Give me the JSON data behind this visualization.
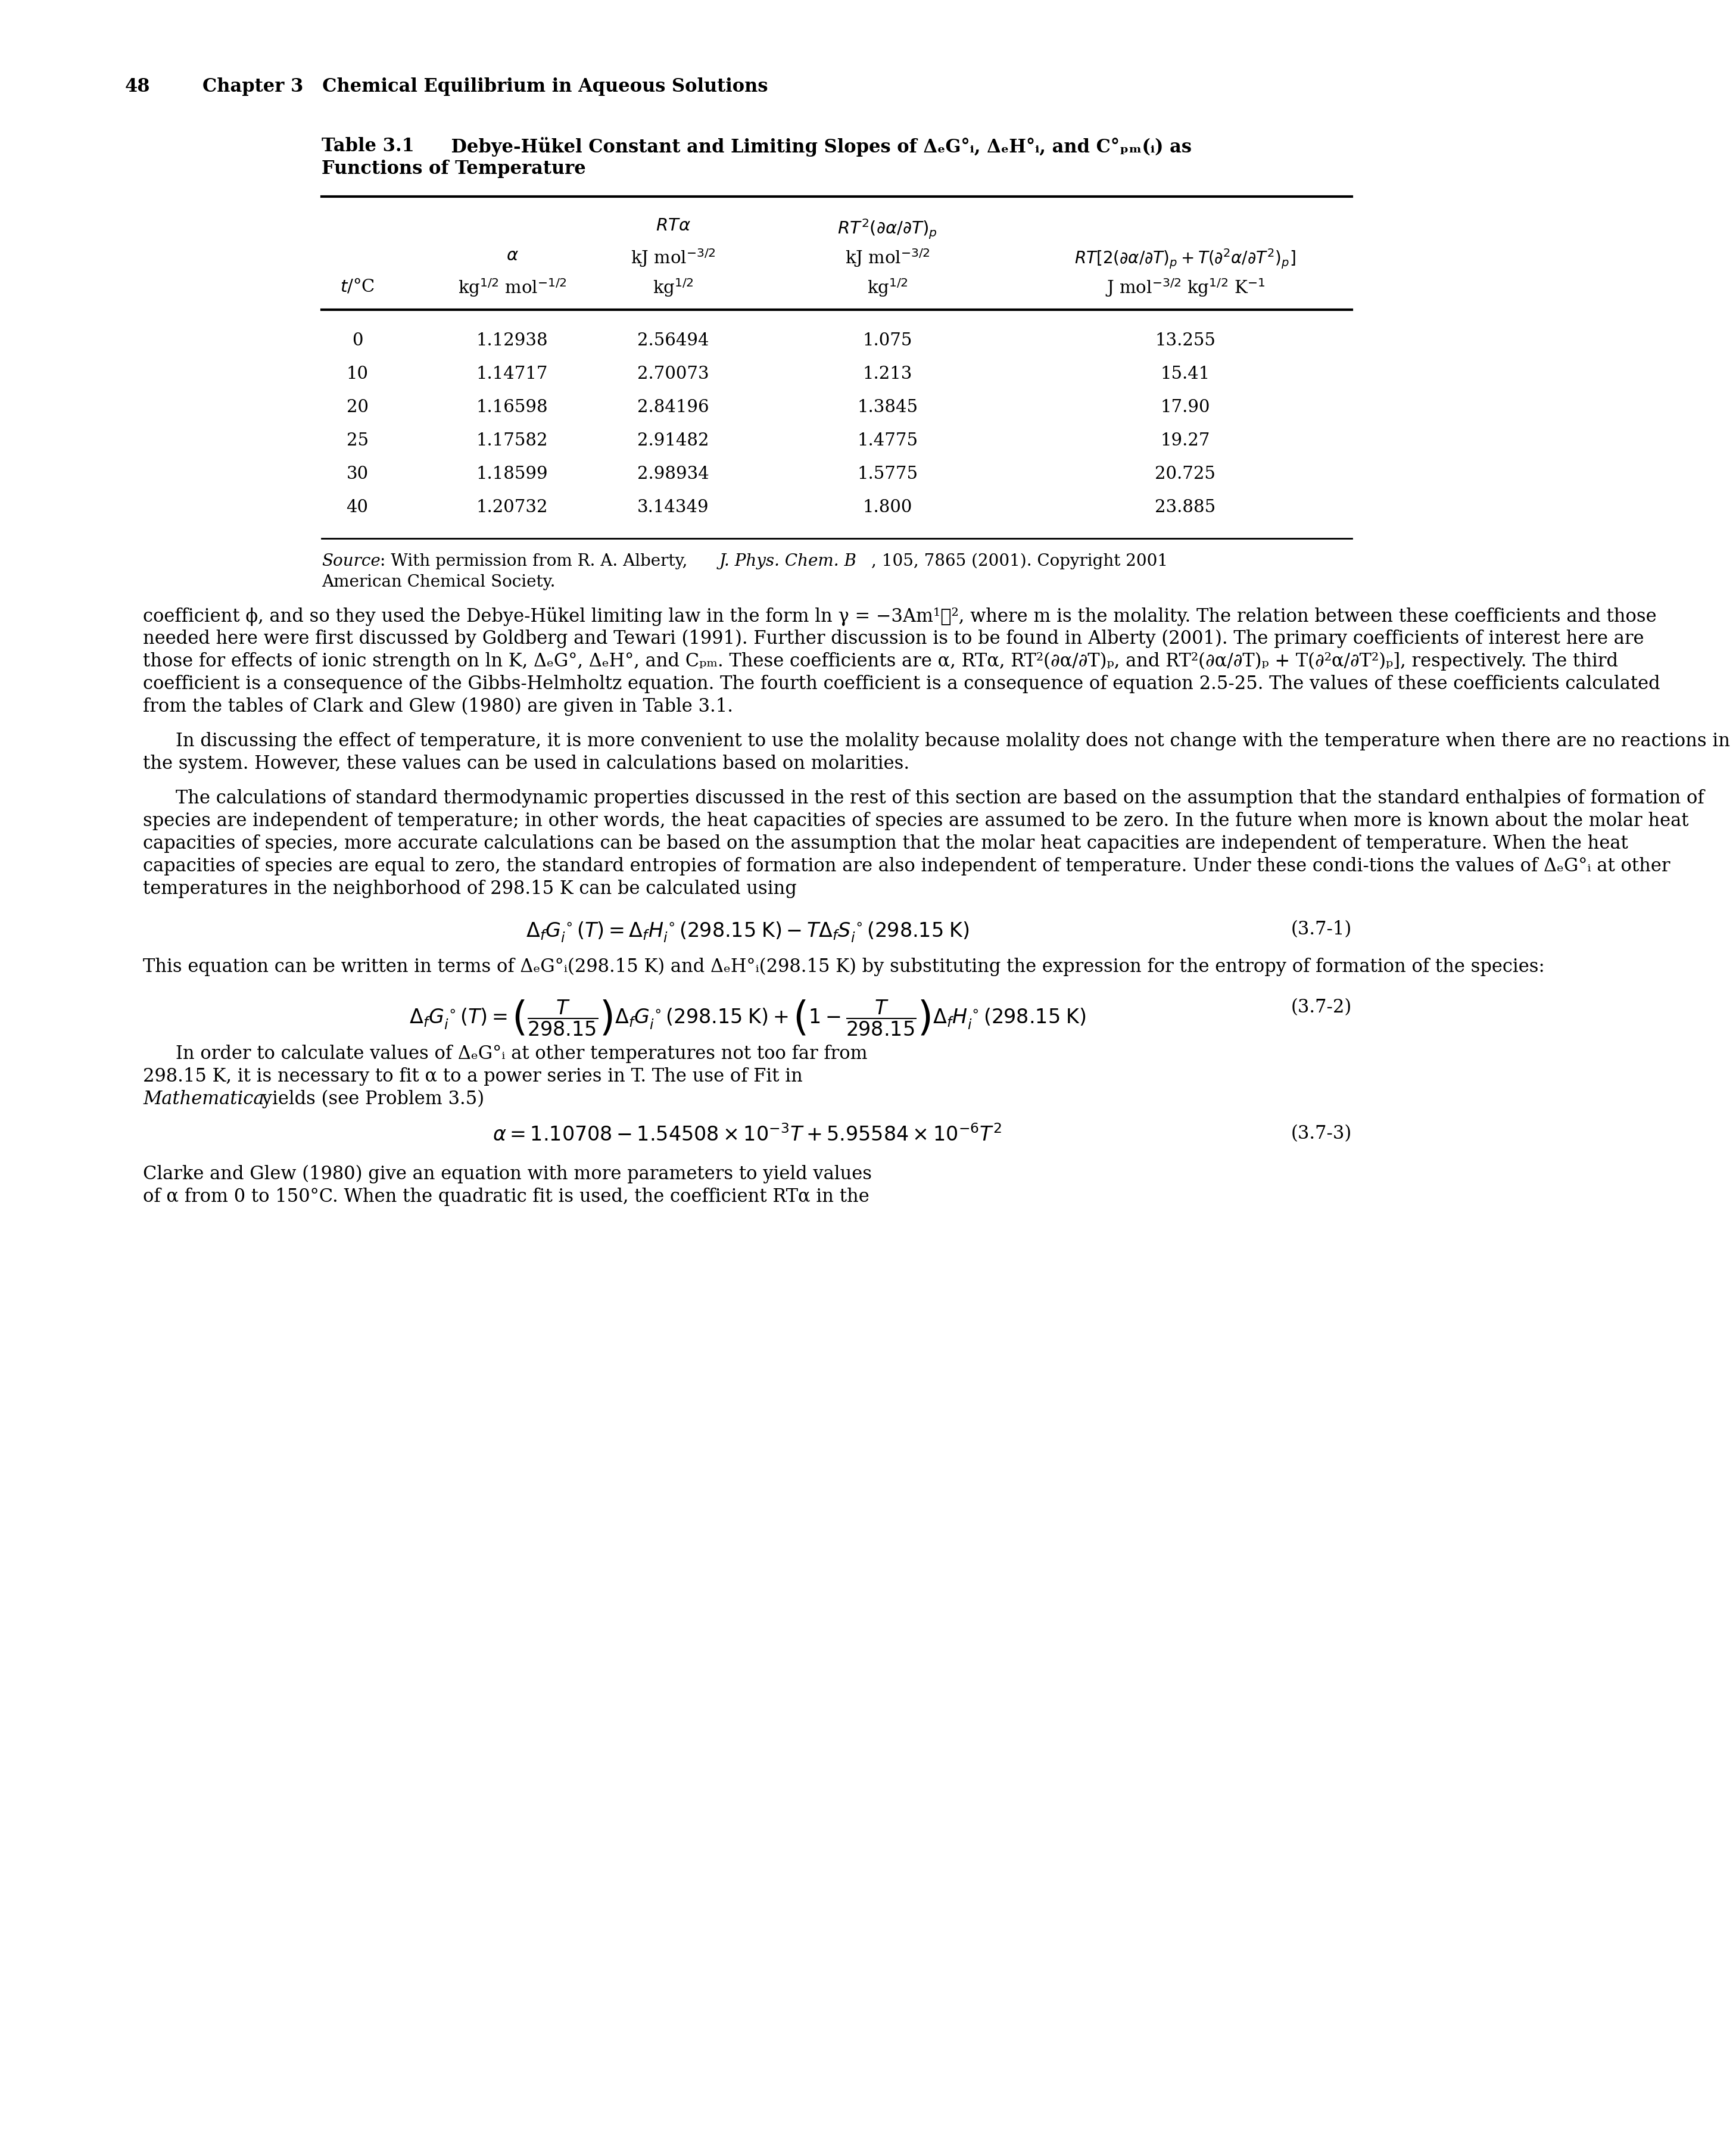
{
  "page_number": "48",
  "chapter_header": "Chapter 3   Chemical Equilibrium in Aqueous Solutions",
  "table_title_bold": "Table 3.1",
  "table_title_rest": "    Debye-Hükel Constant and Limiting Slopes of ΔₑG°ᵢ, ΔₑH°ᵢ, and C°ₚₘ(ᵢ) as",
  "table_title_line2": "Functions of Temperature",
  "col1_header_l1": "$RT\\alpha$",
  "col2_header_l1": "$RT^2(\\partial\\alpha/\\partial T)_p$",
  "col0_header_l2": "$\\alpha$",
  "col1_header_l2": "kJ mol$^{-3/2}$",
  "col2_header_l2": "kJ mol$^{-3/2}$",
  "col3_header_l2": "$RT[2(\\partial\\alpha/\\partial T)_p + T(\\partial^2\\alpha/\\partial T^2)_p]$",
  "col_t_header": "$t$/°C",
  "col0_unit": "kg$^{1/2}$ mol$^{-1/2}$",
  "col1_unit": "kg$^{1/2}$",
  "col2_unit": "kg$^{1/2}$",
  "col3_unit": "J mol$^{-3/2}$ kg$^{1/2}$ K$^{-1}$",
  "table_data": [
    [
      "0",
      "1.12938",
      "2.56494",
      "1.075",
      "13.255"
    ],
    [
      "10",
      "1.14717",
      "2.70073",
      "1.213",
      "15.41"
    ],
    [
      "20",
      "1.16598",
      "2.84196",
      "1.3845",
      "17.90"
    ],
    [
      "25",
      "1.17582",
      "2.91482",
      "1.4775",
      "19.27"
    ],
    [
      "30",
      "1.18599",
      "2.98934",
      "1.5775",
      "20.725"
    ],
    [
      "40",
      "1.20732",
      "3.14349",
      "1.800",
      "23.885"
    ]
  ],
  "source_italic": "Source",
  "source_rest": ": With permission from R. A. Alberty, ",
  "source_italic2": "J. Phys. Chem. B",
  "source_rest2": ", 105, 7865 (2001). Copyright 2001",
  "source_line2": "American Chemical Society.",
  "para1": "coefficient ϕ, and so they used the Debye-Hükel limiting law in the form ln γ = −3Am¹ᐟ², where m is the molality. The relation between these coefficients and those needed here were first discussed by Goldberg and Tewari (1991). Further discussion is to be found in Alberty (2001). The primary coefficients of interest here are those for effects of ionic strength on ln K, ΔₑG°, ΔₑH°, and Cₚₘ. These coefficients are α, RTα, RT²(∂α/∂T)ₚ, and RT²(∂α/∂T)ₚ + T(∂²α/∂T²)ₚ], respectively. The third coefficient is a consequence of the Gibbs-Helmholtz equation. The fourth coefficient is a consequence of equation 2.5-25. The values of these coefficients calculated from the tables of Clark and Glew (1980) are given in Table 3.1.",
  "para2": "In discussing the effect of temperature, it is more convenient to use the molality because molality does not change with the temperature when there are no reactions in the system. However, these values can be used in calculations based on molarities.",
  "para3": "The calculations of standard thermodynamic properties discussed in the rest of this section are based on the assumption that the standard enthalpies of formation of species are independent of temperature; in other words, the heat capacities of species are assumed to be zero. In the future when more is known about the molar heat capacities of species, more accurate calculations can be based on the assumption that the molar heat capacities are independent of temperature. When the heat capacities of species are equal to zero, the standard entropies of formation are also independent of temperature. Under these condi-tions the values of ΔₑG°ᵢ at other temperatures in the neighborhood of 298.15 K can be calculated using",
  "eq1": "$\\Delta_f G^\\circ_i(T) = \\Delta_f H^\\circ_i(298.15\\;{\\rm K}) - T\\Delta_f S^\\circ_i(298.15\\;{\\rm K})$",
  "eq1_label": "(3.7-1)",
  "pre_eq2": "This equation can be written in terms of ΔₑG°ᵢ(298.15 K) and ΔₑH°ᵢ(298.15 K) by substituting the expression for the entropy of formation of the species:",
  "eq2": "$\\Delta_f G^\\circ_i(T) = \\left(\\dfrac{T}{298.15}\\right)\\Delta_f G^\\circ_i(298.15\\;{\\rm K}) + \\left(1 - \\dfrac{T}{298.15}\\right)\\Delta_f H^\\circ_i(298.15\\;{\\rm K})$",
  "eq2_label": "(3.7-2)",
  "pre_eq3_line1": "In order to calculate values of ΔₑG°ᵢ at other temperatures not too far from",
  "pre_eq3_line2": "298.15 K, it is necessary to fit α to a power series in T. The use of Fit in",
  "pre_eq3_line3": "Mathematica yields (see Problem 3.5)",
  "eq3": "$\\alpha = 1.10708 - 1.54508 \\times 10^{-3}T + 5.95584 \\times 10^{-6}T^2$",
  "eq3_label": "(3.7-3)",
  "last_para_line1": "Clarke and Glew (1980) give an equation with more parameters to yield values",
  "last_para_line2": "of α from 0 to 150°C. When the quadratic fit is used, the coefficient RTα in the",
  "bg_color": "#ffffff",
  "text_color": "#000000"
}
